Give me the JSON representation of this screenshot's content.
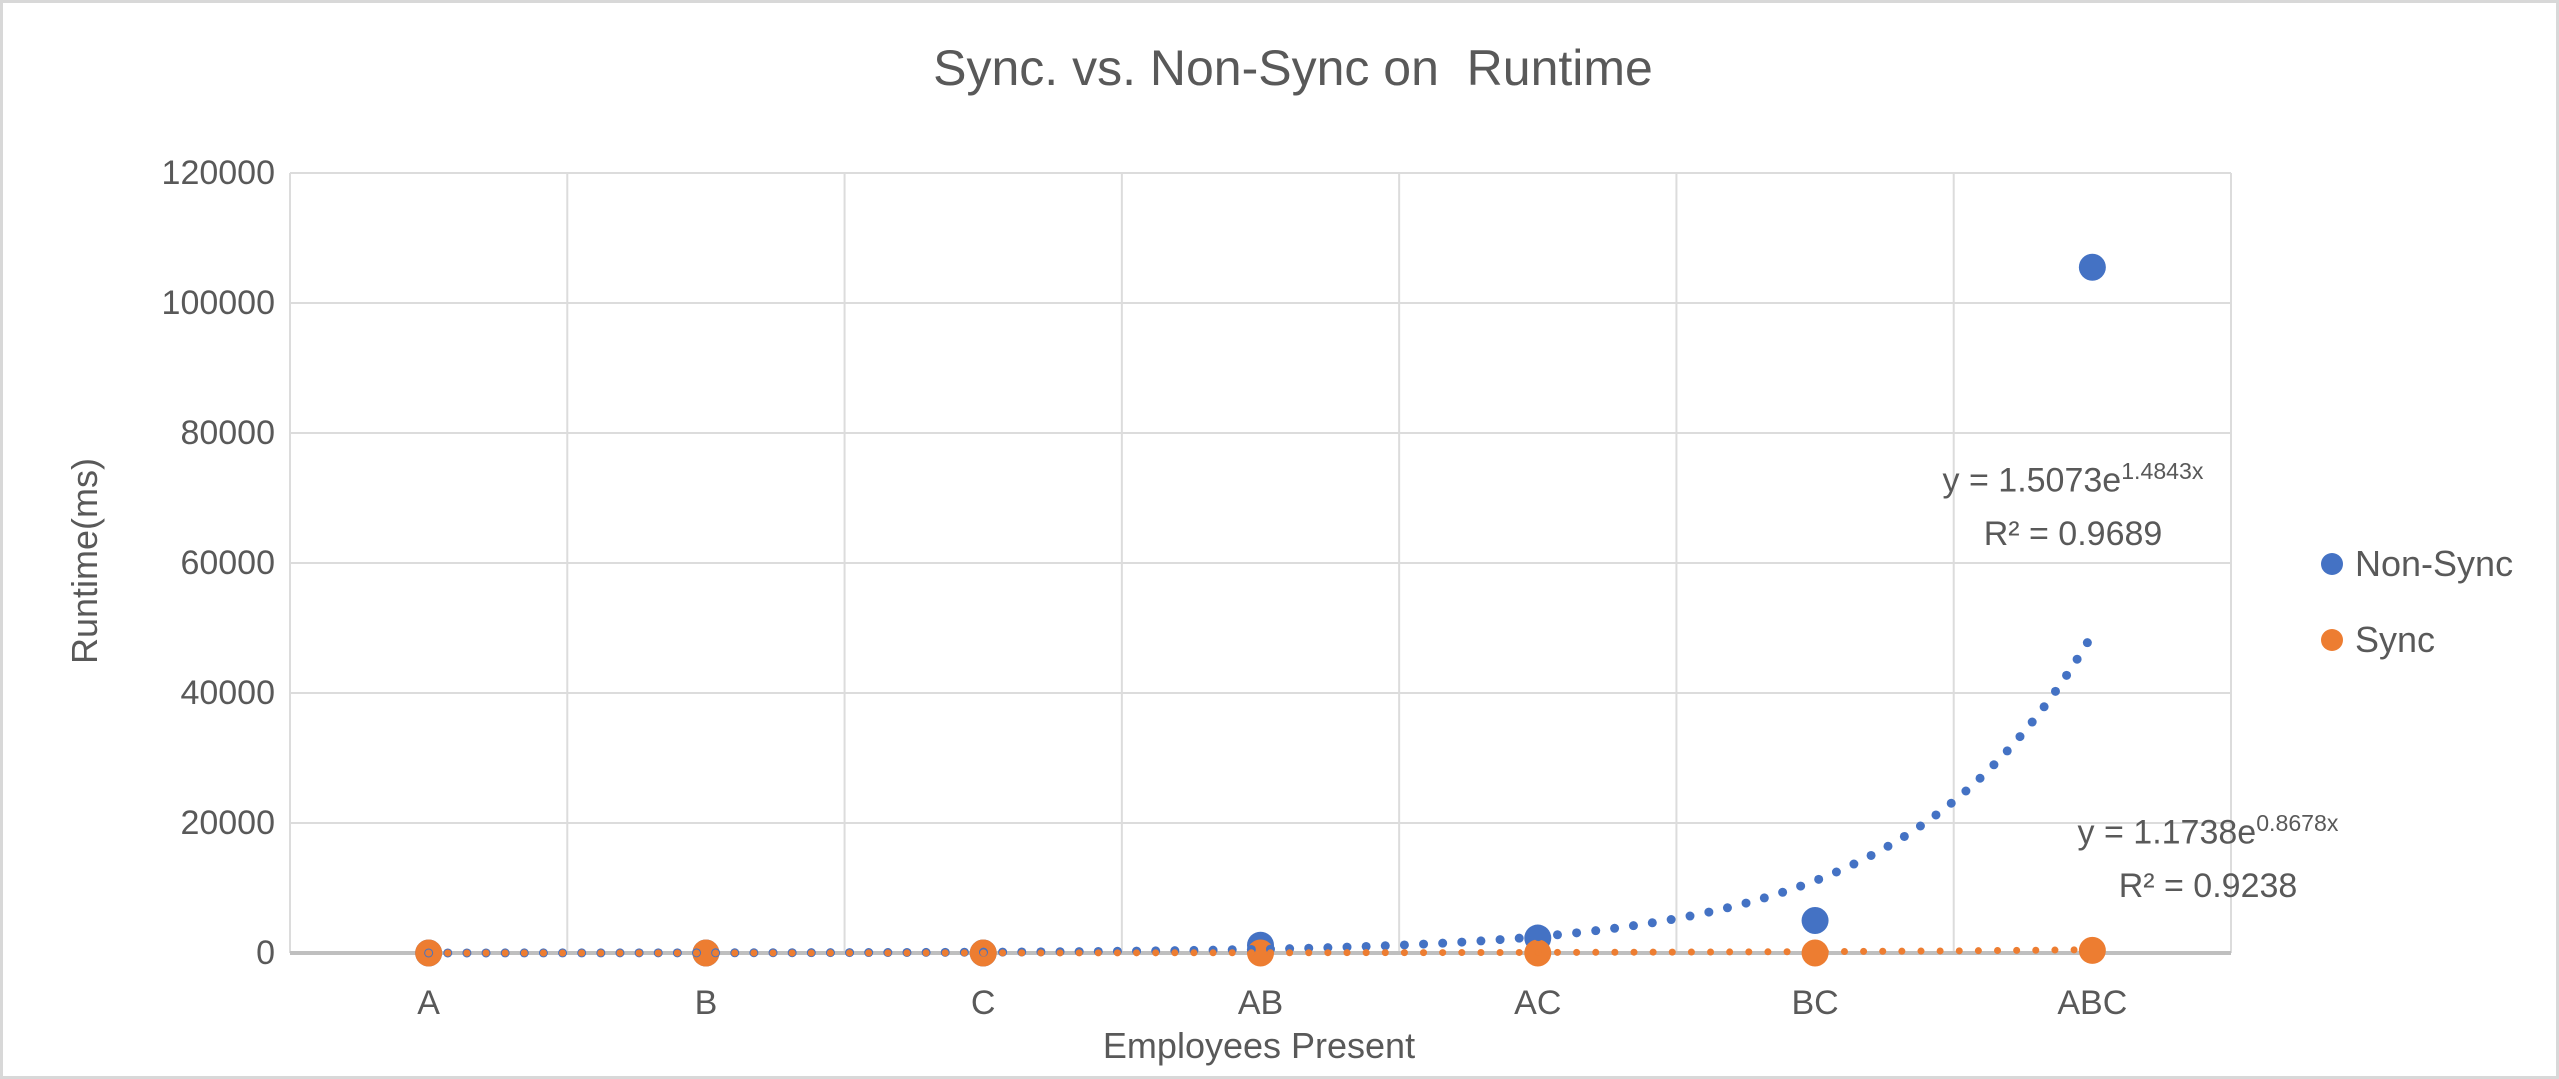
{
  "title": "Sync. vs. Non-Sync on  Runtime",
  "y_axis": {
    "title": "Runtime(ms)",
    "ticks": [
      "120000",
      "100000",
      "80000",
      "60000",
      "40000",
      "20000",
      "0"
    ]
  },
  "x_axis": {
    "title": "Employees Present",
    "categories": [
      "A",
      "B",
      "C",
      "AB",
      "AC",
      "BC",
      "ABC"
    ]
  },
  "legend": {
    "position": "right",
    "items": [
      {
        "label": "Non-Sync",
        "color": "#4472C4"
      },
      {
        "label": "Sync",
        "color": "#ED7D31"
      }
    ]
  },
  "annotations": {
    "non_sync": {
      "prefix": "y = 1.5073e",
      "exponent": "1.4843x",
      "r2": "R² = 0.9689"
    },
    "sync": {
      "prefix": "y = 1.1738e",
      "exponent": "0.8678x",
      "r2": "R² = 0.9238"
    }
  },
  "colors": {
    "non_sync": "#4472C4",
    "sync": "#ED7D31",
    "text": "#595959",
    "gridline": "#DCDCDC",
    "axis_line": "#BFBFBF",
    "chart_border": "#D8D8D8"
  },
  "chart_data": {
    "type": "scatter",
    "title": "Sync. vs. Non-Sync on  Runtime",
    "xlabel": "Employees Present",
    "ylabel": "Runtime(ms)",
    "categories": [
      "A",
      "B",
      "C",
      "AB",
      "AC",
      "BC",
      "ABC"
    ],
    "series": [
      {
        "name": "Non-Sync",
        "color": "#4472C4",
        "values": [
          0,
          0,
          0,
          1200,
          2300,
          5000,
          105500
        ],
        "trendline": {
          "type": "exponential",
          "a": 1.5073,
          "b": 1.4843,
          "r2": 0.9689,
          "style": "dotted"
        }
      },
      {
        "name": "Sync",
        "color": "#ED7D31",
        "values": [
          0,
          0,
          0,
          0,
          0,
          0,
          400
        ],
        "trendline": {
          "type": "exponential",
          "a": 1.1738,
          "b": 0.8678,
          "r2": 0.9238,
          "style": "dotted"
        }
      }
    ],
    "ylim": [
      0,
      120000
    ],
    "ytick_step": 20000,
    "grid": true,
    "legend_position": "right"
  }
}
